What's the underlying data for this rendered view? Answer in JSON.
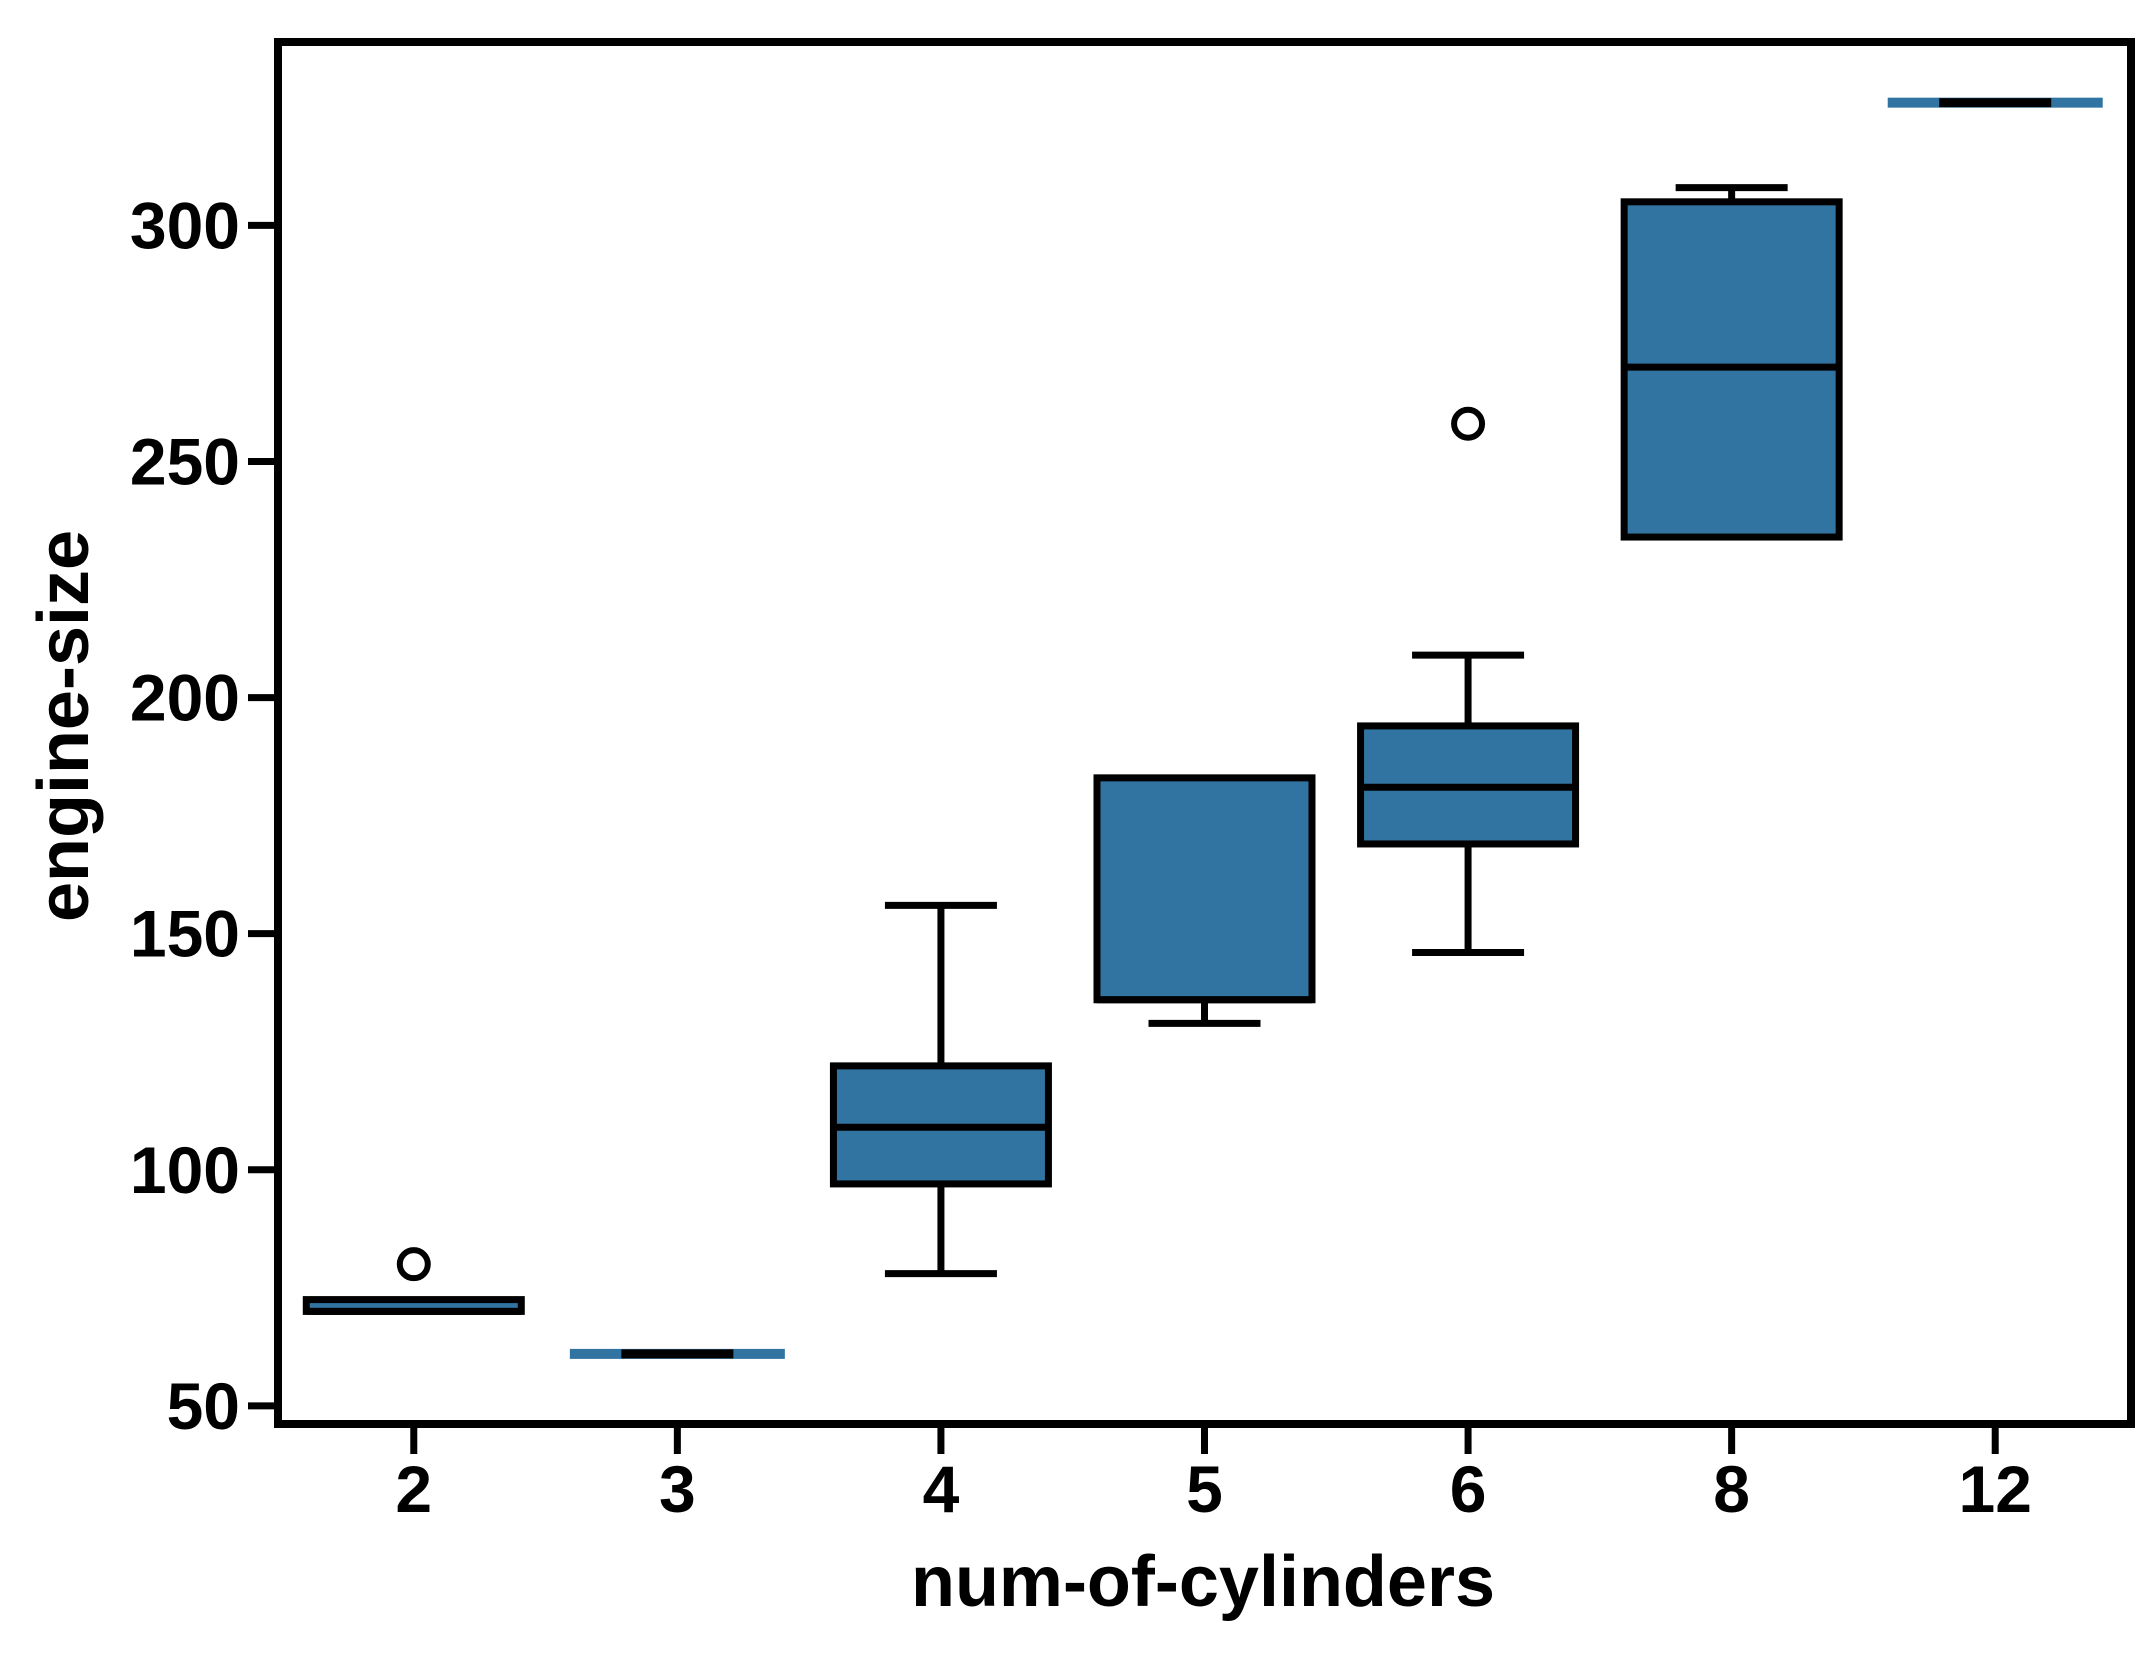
{
  "figure": {
    "background": "#ffffff"
  },
  "chart_data": {
    "type": "boxplot",
    "title": "",
    "xlabel": "num-of-cylinders",
    "ylabel": "engine-size",
    "categories": [
      "2",
      "3",
      "4",
      "5",
      "6",
      "8",
      "12"
    ],
    "yticks": [
      50,
      100,
      150,
      200,
      250,
      300
    ],
    "ylim": [
      47,
      338
    ],
    "grid": false,
    "legend_position": "none",
    "box_fill_color": "#3274a1",
    "line_color": "#000000",
    "flier_fill_color": "#ffffff",
    "series": [
      {
        "category": "2",
        "whislo": 70,
        "q1": 70,
        "med": 70,
        "q3": 72.5,
        "whishi": 72.5,
        "fliers": [
          80
        ]
      },
      {
        "category": "3",
        "whislo": 61,
        "q1": 61,
        "med": 61,
        "q3": 61,
        "whishi": 61,
        "fliers": []
      },
      {
        "category": "4",
        "whislo": 78,
        "q1": 97,
        "med": 109,
        "q3": 122,
        "whishi": 156,
        "fliers": []
      },
      {
        "category": "5",
        "whislo": 131,
        "q1": 136,
        "med": 136,
        "q3": 183,
        "whishi": 183,
        "fliers": []
      },
      {
        "category": "6",
        "whislo": 146,
        "q1": 169,
        "med": 181,
        "q3": 194,
        "whishi": 209,
        "fliers": [
          258
        ]
      },
      {
        "category": "8",
        "whislo": 234,
        "q1": 234,
        "med": 270,
        "q3": 305,
        "whishi": 308,
        "fliers": []
      },
      {
        "category": "12",
        "whislo": 326,
        "q1": 326,
        "med": 326,
        "q3": 326,
        "whishi": 326,
        "fliers": []
      }
    ]
  }
}
